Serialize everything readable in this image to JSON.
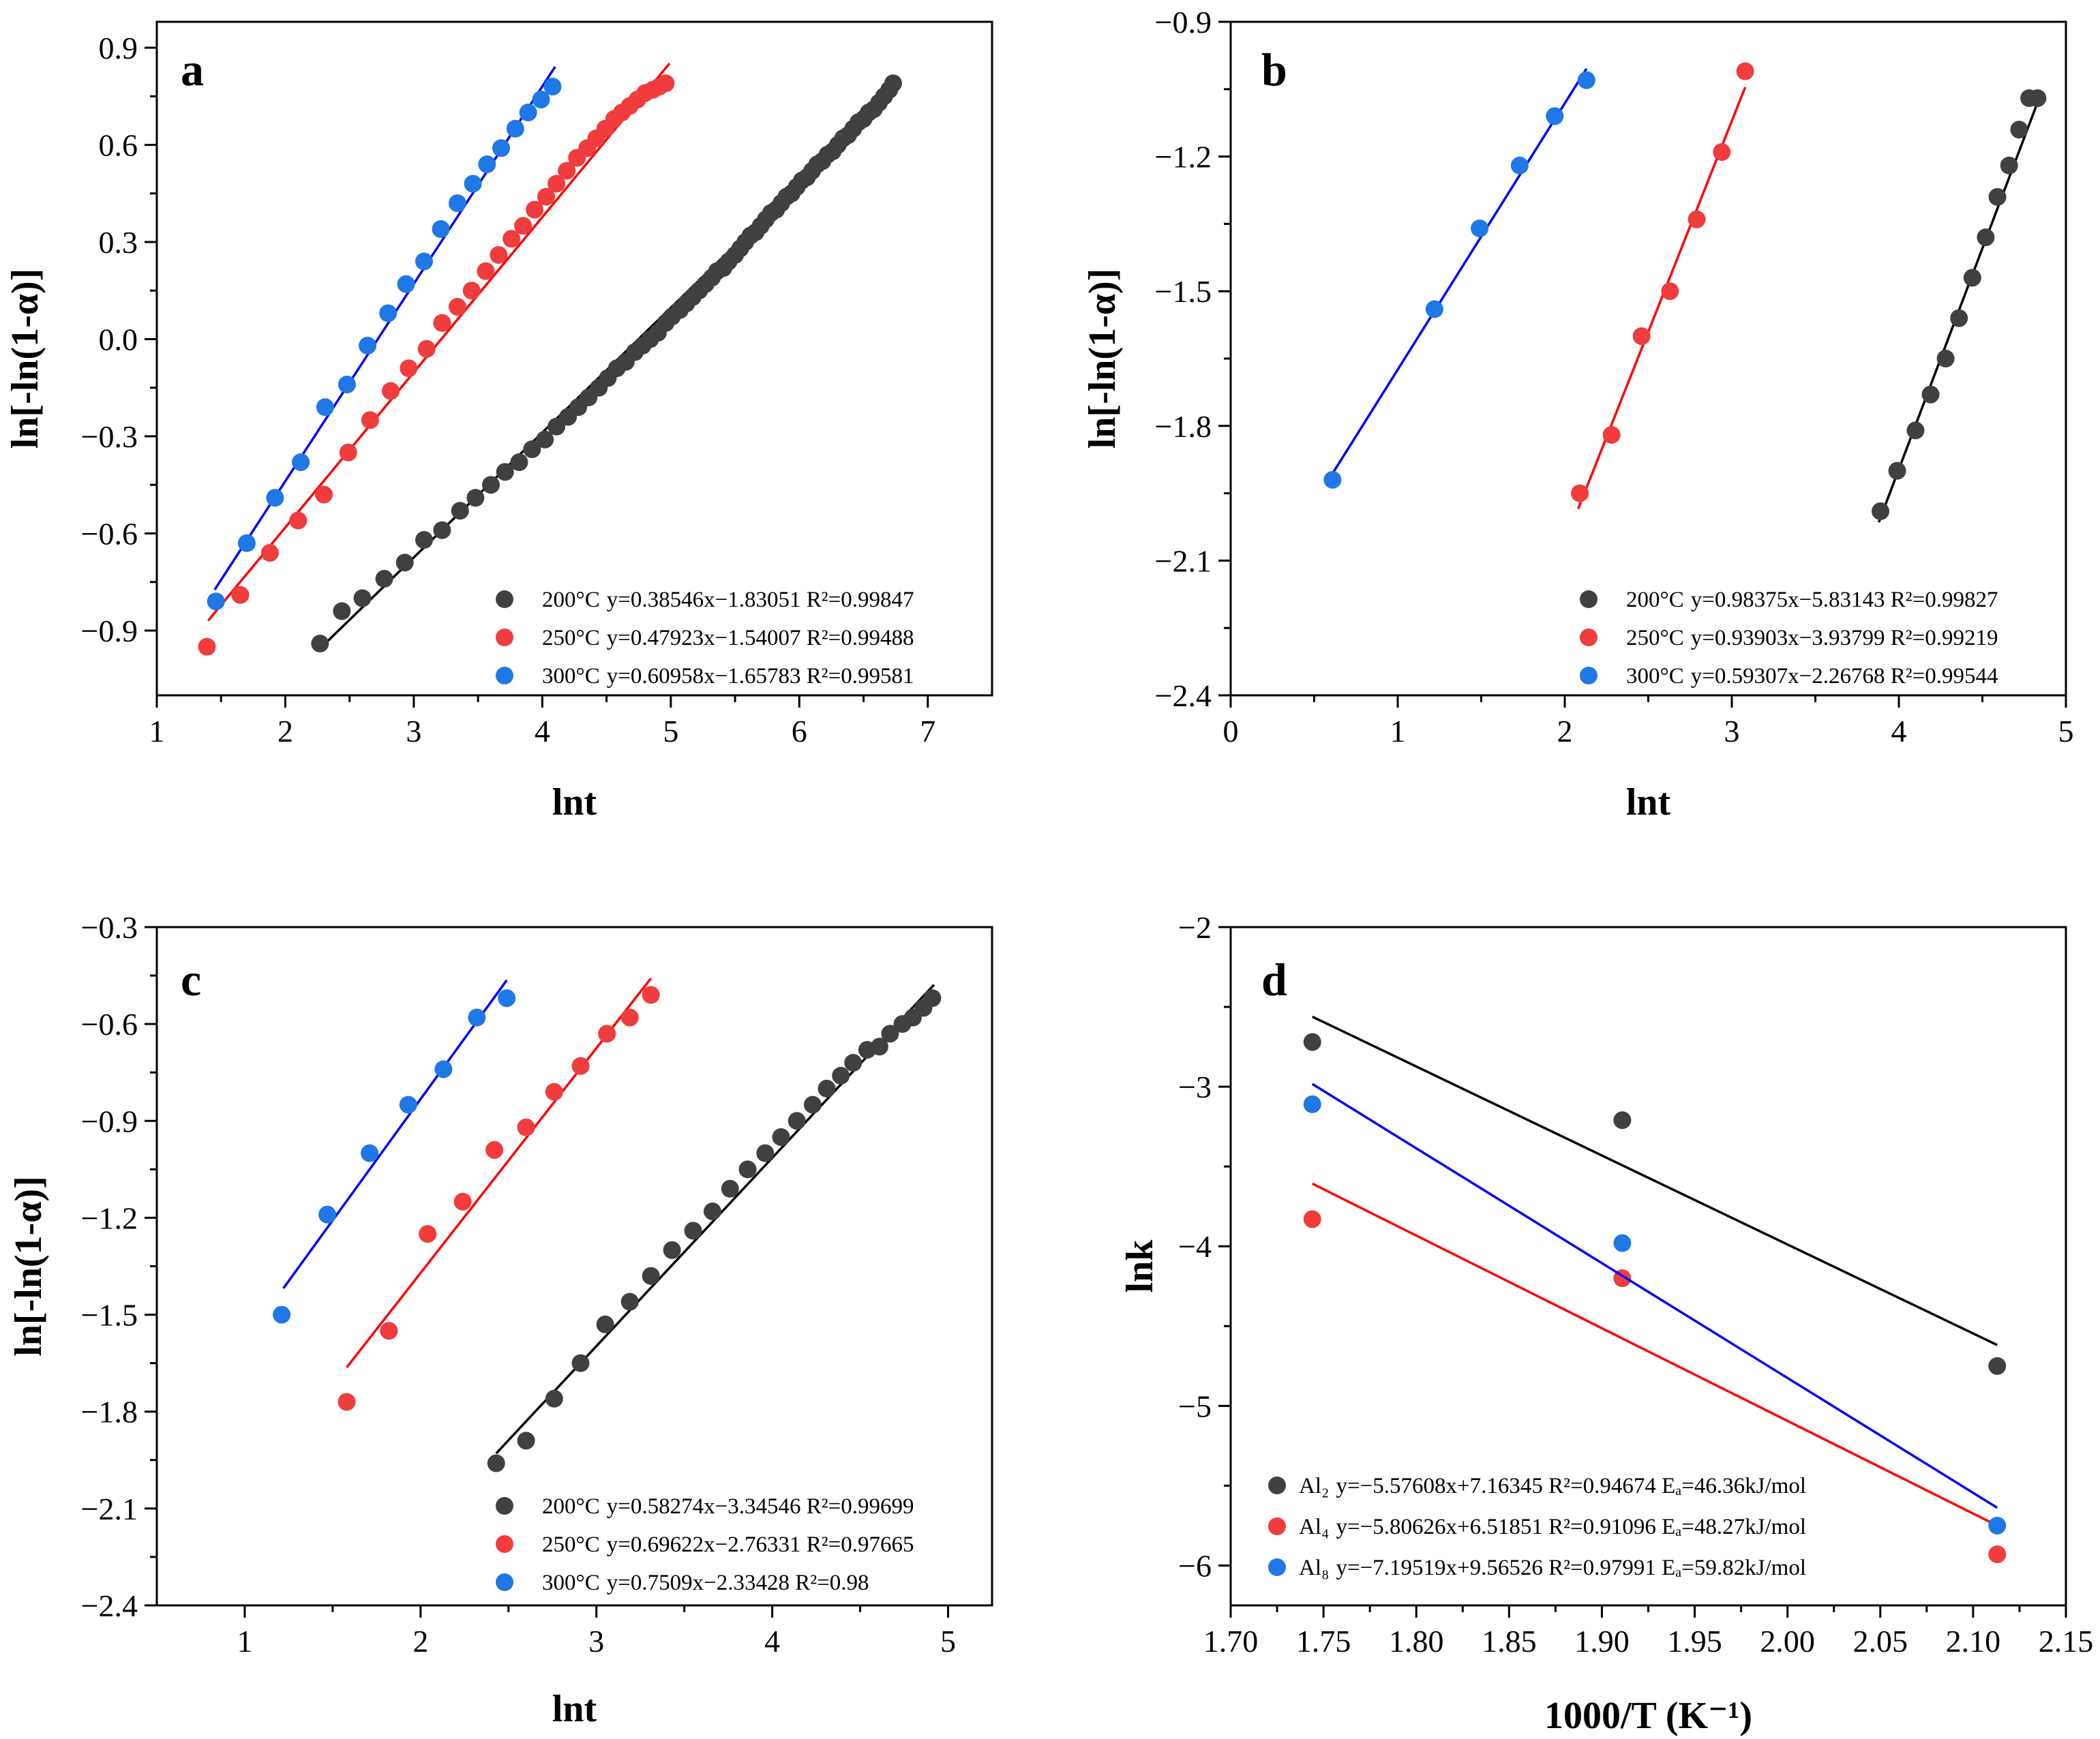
{
  "figure_colors": {
    "s200": "#404040",
    "s250": "#f03c3c",
    "s300": "#1f78e6",
    "fit200": "#000000",
    "fit250": "#ff0000",
    "fit300": "#0000ff"
  },
  "chart_data": [
    {
      "id": "a",
      "panel_label": "a",
      "type": "scatter",
      "xlabel": "lnt",
      "ylabel": "ln[-ln(1-α)]",
      "xlim": [
        1,
        7.5
      ],
      "ylim": [
        -1.1,
        0.98
      ],
      "xticks": [
        1,
        2,
        3,
        4,
        5,
        6,
        7
      ],
      "xtick_labels": [
        "1",
        "2",
        "3",
        "4",
        "5",
        "6",
        "7"
      ],
      "yticks": [
        -0.9,
        -0.6,
        -0.3,
        0.0,
        0.3,
        0.6,
        0.9
      ],
      "ytick_labels": [
        "−0.9",
        "−0.6",
        "−0.3",
        "0.0",
        "0.3",
        "0.6",
        "0.9"
      ],
      "legend_position": "bottom-right",
      "series": [
        {
          "name": "200°C",
          "fit_text": "y=0.38546x−1.83051 R²=0.99847",
          "slope": 0.38546,
          "intercept": -1.83051,
          "fit_range": [
            2.25,
            6.75
          ],
          "x": [
            2.27,
            2.44,
            2.6,
            2.77,
            2.93,
            3.08,
            3.22,
            3.36,
            3.48,
            3.6,
            3.71,
            3.82,
            3.92,
            4.02,
            4.11,
            4.2,
            4.28,
            4.36,
            4.44,
            4.51,
            4.58,
            4.65,
            4.72,
            4.78,
            4.84,
            4.9,
            4.96,
            5.01,
            5.07,
            5.12,
            5.17,
            5.22,
            5.27,
            5.32,
            5.36,
            5.41,
            5.45,
            5.5,
            5.54,
            5.58,
            5.62,
            5.66,
            5.7,
            5.74,
            5.78,
            5.82,
            5.86,
            5.9,
            5.94,
            5.98,
            6.02,
            6.06,
            6.1,
            6.14,
            6.18,
            6.22,
            6.26,
            6.3,
            6.34,
            6.38,
            6.42,
            6.46,
            6.5,
            6.54,
            6.58,
            6.62,
            6.66,
            6.7,
            6.73
          ],
          "y": [
            -0.94,
            -0.84,
            -0.8,
            -0.74,
            -0.69,
            -0.62,
            -0.59,
            -0.53,
            -0.49,
            -0.45,
            -0.41,
            -0.38,
            -0.34,
            -0.31,
            -0.27,
            -0.24,
            -0.21,
            -0.18,
            -0.15,
            -0.12,
            -0.09,
            -0.07,
            -0.04,
            -0.02,
            0.0,
            0.02,
            0.05,
            0.07,
            0.09,
            0.11,
            0.13,
            0.15,
            0.17,
            0.19,
            0.21,
            0.22,
            0.24,
            0.26,
            0.28,
            0.3,
            0.32,
            0.33,
            0.35,
            0.37,
            0.39,
            0.4,
            0.42,
            0.44,
            0.45,
            0.47,
            0.49,
            0.5,
            0.52,
            0.54,
            0.55,
            0.57,
            0.58,
            0.6,
            0.62,
            0.63,
            0.65,
            0.67,
            0.68,
            0.7,
            0.71,
            0.73,
            0.75,
            0.77,
            0.79
          ]
        },
        {
          "name": "250°C",
          "fit_text": "y=0.47923x−1.54007 R²=0.99488",
          "slope": 0.47923,
          "intercept": -1.54007,
          "fit_range": [
            1.4,
            4.99
          ],
          "x": [
            1.39,
            1.65,
            1.88,
            2.1,
            2.3,
            2.49,
            2.66,
            2.82,
            2.96,
            3.1,
            3.22,
            3.34,
            3.45,
            3.56,
            3.66,
            3.76,
            3.85,
            3.94,
            4.03,
            4.11,
            4.19,
            4.27,
            4.35,
            4.42,
            4.49,
            4.56,
            4.62,
            4.68,
            4.74,
            4.8,
            4.86,
            4.91,
            4.96
          ],
          "y": [
            -0.95,
            -0.79,
            -0.66,
            -0.56,
            -0.48,
            -0.35,
            -0.25,
            -0.16,
            -0.09,
            -0.03,
            0.05,
            0.1,
            0.15,
            0.21,
            0.26,
            0.31,
            0.35,
            0.4,
            0.44,
            0.48,
            0.52,
            0.56,
            0.59,
            0.62,
            0.65,
            0.68,
            0.7,
            0.72,
            0.74,
            0.76,
            0.77,
            0.78,
            0.79
          ]
        },
        {
          "name": "300°C",
          "fit_text": "y=0.60958x−1.65783 R²=0.99581",
          "slope": 0.60958,
          "intercept": -1.65783,
          "fit_range": [
            1.45,
            4.1
          ],
          "x": [
            1.46,
            1.7,
            1.92,
            2.12,
            2.31,
            2.48,
            2.64,
            2.8,
            2.94,
            3.08,
            3.21,
            3.34,
            3.46,
            3.57,
            3.68,
            3.79,
            3.89,
            3.99,
            4.08
          ],
          "y": [
            -0.81,
            -0.63,
            -0.49,
            -0.38,
            -0.21,
            -0.14,
            -0.02,
            0.08,
            0.17,
            0.24,
            0.34,
            0.42,
            0.48,
            0.54,
            0.59,
            0.65,
            0.7,
            0.74,
            0.78
          ]
        }
      ]
    },
    {
      "id": "b",
      "panel_label": "b",
      "type": "scatter",
      "xlabel": "lnt",
      "ylabel": "ln[-ln(1-α)]",
      "xlim": [
        0,
        5
      ],
      "ylim": [
        -2.4,
        -0.9
      ],
      "xticks": [
        0,
        1,
        2,
        3,
        4,
        5
      ],
      "xtick_labels": [
        "0",
        "1",
        "2",
        "3",
        "4",
        "5"
      ],
      "yticks": [
        -2.4,
        -2.1,
        -1.8,
        -1.5,
        -1.2,
        -0.9
      ],
      "ytick_labels": [
        "−2.4",
        "−2.1",
        "−1.8",
        "−1.5",
        "−1.2",
        "−0.9"
      ],
      "legend_position": "bottom-right",
      "series": [
        {
          "name": "200°C",
          "fit_text": "y=0.98375x−5.83143 R²=0.99827",
          "slope": 0.98375,
          "intercept": -5.83143,
          "fit_range": [
            3.88,
            4.85
          ],
          "x": [
            3.89,
            3.99,
            4.1,
            4.19,
            4.28,
            4.36,
            4.44,
            4.52,
            4.59,
            4.66,
            4.72,
            4.78,
            4.83
          ],
          "y": [
            -1.99,
            -1.9,
            -1.81,
            -1.73,
            -1.65,
            -1.56,
            -1.47,
            -1.38,
            -1.29,
            -1.22,
            -1.14,
            -1.07,
            -1.07
          ]
        },
        {
          "name": "250°C",
          "fit_text": "y=0.93903x−3.93799 R²=0.99219",
          "slope": 0.93903,
          "intercept": -3.93799,
          "fit_range": [
            2.08,
            3.08
          ],
          "x": [
            2.09,
            2.28,
            2.46,
            2.63,
            2.79,
            2.94,
            3.08
          ],
          "y": [
            -1.95,
            -1.82,
            -1.6,
            -1.5,
            -1.34,
            -1.19,
            -1.01
          ]
        },
        {
          "name": "300°C",
          "fit_text": "y=0.59307x−2.26768 R²=0.99544",
          "slope": 0.59307,
          "intercept": -2.26768,
          "fit_range": [
            0.6,
            2.13
          ],
          "x": [
            0.61,
            1.22,
            1.49,
            1.73,
            1.94,
            2.13
          ],
          "y": [
            -1.92,
            -1.54,
            -1.36,
            -1.22,
            -1.11,
            -1.03
          ]
        }
      ]
    },
    {
      "id": "c",
      "panel_label": "c",
      "type": "scatter",
      "xlabel": "lnt",
      "ylabel": "ln[-ln(1-α)]",
      "xlim": [
        0.5,
        5.25
      ],
      "ylim": [
        -2.4,
        -0.3
      ],
      "xticks": [
        1,
        2,
        3,
        4,
        5
      ],
      "xtick_labels": [
        "1",
        "2",
        "3",
        "4",
        "5"
      ],
      "yticks": [
        -2.4,
        -2.1,
        -1.8,
        -1.5,
        -1.2,
        -0.9,
        -0.6,
        -0.3
      ],
      "ytick_labels": [
        "−2.4",
        "−2.1",
        "−1.8",
        "−1.5",
        "−1.2",
        "−0.9",
        "−0.6",
        "−0.3"
      ],
      "legend_position": "bottom-right",
      "series": [
        {
          "name": "200°C",
          "fit_text": "y=0.58274x−3.34546 R²=0.99699",
          "slope": 0.58274,
          "intercept": -3.34546,
          "fit_range": [
            2.43,
            4.92
          ],
          "x": [
            2.43,
            2.6,
            2.76,
            2.91,
            3.05,
            3.19,
            3.31,
            3.43,
            3.55,
            3.66,
            3.76,
            3.86,
            3.96,
            4.05,
            4.14,
            4.23,
            4.31,
            4.39,
            4.46,
            4.54,
            4.61,
            4.67,
            4.74,
            4.8,
            4.86,
            4.91
          ],
          "y": [
            -1.96,
            -1.89,
            -1.76,
            -1.65,
            -1.53,
            -1.46,
            -1.38,
            -1.3,
            -1.24,
            -1.18,
            -1.11,
            -1.05,
            -1.0,
            -0.95,
            -0.9,
            -0.85,
            -0.8,
            -0.76,
            -0.72,
            -0.68,
            -0.67,
            -0.63,
            -0.6,
            -0.58,
            -0.55,
            -0.52
          ]
        },
        {
          "name": "250°C",
          "fit_text": "y=0.69622x−2.76331 R²=0.97665",
          "slope": 0.69622,
          "intercept": -2.76331,
          "fit_range": [
            1.58,
            3.31
          ],
          "x": [
            1.58,
            1.82,
            2.04,
            2.24,
            2.42,
            2.6,
            2.76,
            2.91,
            3.06,
            3.19,
            3.31
          ],
          "y": [
            -1.77,
            -1.55,
            -1.25,
            -1.15,
            -0.99,
            -0.92,
            -0.81,
            -0.73,
            -0.63,
            -0.58,
            -0.51
          ]
        },
        {
          "name": "300°C",
          "fit_text": "y=0.7509x−2.33428   R²=0.98",
          "slope": 0.7509,
          "intercept": -2.33428,
          "fit_range": [
            1.22,
            2.49
          ],
          "x": [
            1.21,
            1.47,
            1.71,
            1.93,
            2.13,
            2.32,
            2.49
          ],
          "y": [
            -1.5,
            -1.19,
            -1.0,
            -0.85,
            -0.74,
            -0.58,
            -0.52
          ]
        }
      ]
    },
    {
      "id": "d",
      "panel_label": "d",
      "type": "scatter",
      "xlabel": "1000/T (K⁻¹)",
      "ylabel": "lnk",
      "xlim": [
        1.7,
        2.15
      ],
      "ylim": [
        -6.25,
        -2.0
      ],
      "xticks": [
        1.7,
        1.75,
        1.8,
        1.85,
        1.9,
        1.95,
        2.0,
        2.05,
        2.1,
        2.15
      ],
      "xtick_labels": [
        "1.70",
        "1.75",
        "1.80",
        "1.85",
        "1.90",
        "1.95",
        "2.00",
        "2.05",
        "2.10",
        "2.15"
      ],
      "yticks": [
        -6,
        -5,
        -4,
        -3,
        -2
      ],
      "ytick_labels": [
        "−6",
        "−5",
        "−4",
        "−3",
        "−2"
      ],
      "legend_position": "bottom-left",
      "series": [
        {
          "name": "Al₂",
          "fit_text": "y=−5.57608x+7.16345 R²=0.94674 Eₐ=46.36kJ/mol",
          "slope": -5.57608,
          "intercept": 7.16345,
          "fit_range": [
            1.744,
            2.113
          ],
          "x": [
            1.744,
            1.911,
            2.113
          ],
          "y": [
            -2.72,
            -3.21,
            -4.75
          ]
        },
        {
          "name": "Al₄",
          "fit_text": "y=−5.80626x+6.51851 R²=0.91096 Eₐ=48.27kJ/mol",
          "slope": -5.80626,
          "intercept": 6.51851,
          "fit_range": [
            1.744,
            2.113
          ],
          "x": [
            1.744,
            1.911,
            2.113
          ],
          "y": [
            -3.83,
            -4.2,
            -5.93
          ]
        },
        {
          "name": "Al₈",
          "fit_text": "y=−7.19519x+9.56526 R²=0.97991 Eₐ=59.82kJ/mol",
          "slope": -7.19519,
          "intercept": 9.56526,
          "fit_range": [
            1.744,
            2.113
          ],
          "x": [
            1.744,
            1.911,
            2.113
          ],
          "y": [
            -3.11,
            -3.98,
            -5.75
          ]
        }
      ]
    }
  ]
}
